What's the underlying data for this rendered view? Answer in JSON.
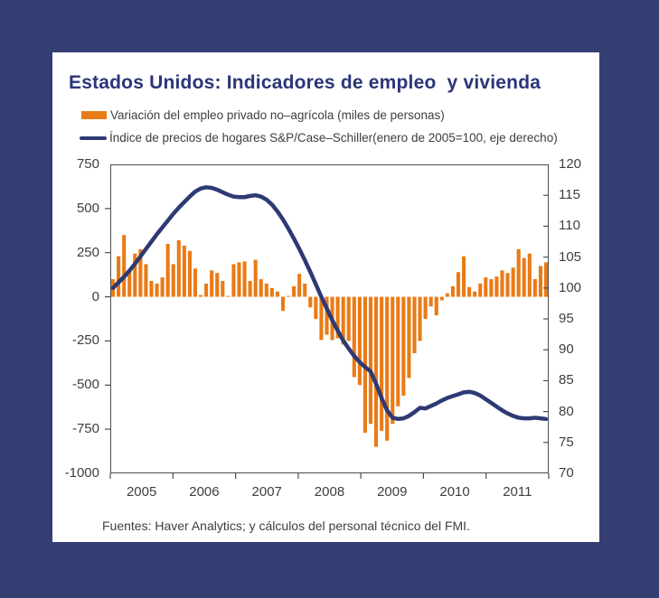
{
  "colors": {
    "background": "#353e73",
    "card": "#ffffff",
    "title": "#2b3577",
    "bars": "#e97b17",
    "line": "#2d3a73",
    "axis_text": "#3e3e3e",
    "frame": "#4d4d4d"
  },
  "header": {
    "title": "Estados Unidos: Indicadores de empleo  y vivienda"
  },
  "legend": {
    "items": [
      {
        "swatch": "bar",
        "label": "Variación del empleo privado no–agrícola (miles de personas)"
      },
      {
        "swatch": "line",
        "label": "Índice de precios de hogares S&P/Case–Schiller(enero de 2005=100, eje derecho)"
      }
    ]
  },
  "footer": {
    "source": "Fuentes: Haver Analytics; y cálculos del personal técnico del FMI."
  },
  "chart_data": {
    "type": "bar",
    "title": "Estados Unidos: Indicadores de empleo  y vivienda",
    "x_frequency": "monthly",
    "x_start_month": "2005-01",
    "x_end_month": "2011-08",
    "x_tick_labels": [
      "2005",
      "2006",
      "2007",
      "2008",
      "2009",
      "2010",
      "2011"
    ],
    "left_axis": {
      "ticks": [
        750,
        500,
        250,
        0,
        -250,
        -500,
        -750,
        -1000
      ],
      "min": -1000,
      "max": 750
    },
    "right_axis": {
      "ticks": [
        120,
        115,
        110,
        105,
        100,
        95,
        90,
        85,
        80,
        75,
        70
      ],
      "min": 70,
      "max": 120
    },
    "grid": false,
    "legend_position": "top",
    "series": [
      {
        "name": "Variación del empleo privado no–agrícola (miles de personas)",
        "type": "bar",
        "axis": "left",
        "values": [
          100,
          230,
          350,
          145,
          245,
          270,
          185,
          90,
          75,
          110,
          300,
          185,
          320,
          290,
          260,
          160,
          10,
          75,
          150,
          135,
          90,
          5,
          185,
          195,
          200,
          90,
          210,
          100,
          75,
          50,
          30,
          -80,
          5,
          60,
          130,
          75,
          -60,
          -125,
          -245,
          -215,
          -245,
          -235,
          -270,
          -250,
          -455,
          -500,
          -770,
          -720,
          -850,
          -760,
          -815,
          -720,
          -620,
          -560,
          -460,
          -320,
          -250,
          -125,
          -55,
          -105,
          -20,
          20,
          60,
          140,
          230,
          55,
          30,
          75,
          110,
          100,
          115,
          150,
          135,
          165,
          270,
          220,
          245,
          100,
          175,
          195
        ]
      },
      {
        "name": "Índice de precios de hogares S&P/Case–Schiller (enero de 2005=100, eje derecho)",
        "type": "line",
        "axis": "right",
        "values": [
          100.0,
          100.9,
          101.8,
          102.8,
          103.9,
          105.1,
          106.3,
          107.5,
          108.7,
          109.8,
          110.9,
          112.0,
          113.0,
          113.9,
          114.8,
          115.6,
          116.1,
          116.3,
          116.2,
          115.9,
          115.5,
          115.1,
          114.8,
          114.7,
          114.7,
          114.9,
          115.0,
          114.8,
          114.3,
          113.5,
          112.4,
          111.1,
          109.6,
          108.0,
          106.3,
          104.5,
          102.6,
          100.6,
          98.6,
          96.7,
          94.8,
          93.1,
          91.5,
          90.2,
          89.0,
          88.0,
          87.2,
          86.5,
          84.5,
          82.2,
          80.2,
          79.0,
          78.8,
          78.9,
          79.3,
          79.9,
          80.6,
          80.5,
          80.9,
          81.3,
          81.8,
          82.2,
          82.5,
          82.8,
          83.1,
          83.2,
          83.0,
          82.6,
          82.0,
          81.4,
          80.8,
          80.2,
          79.7,
          79.3,
          79.0,
          78.9,
          78.9,
          79.0,
          78.9,
          78.8
        ]
      }
    ]
  }
}
